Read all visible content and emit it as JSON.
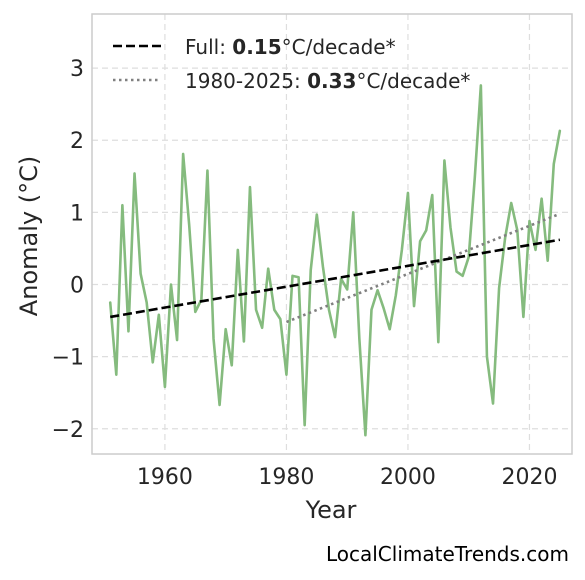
{
  "chart_data": {
    "type": "line",
    "xlabel": "Year",
    "ylabel": "Anomaly (°C)",
    "xlim": [
      1948,
      2027
    ],
    "ylim": [
      -2.35,
      3.75
    ],
    "x_ticks": [
      1960,
      1980,
      2000,
      2020
    ],
    "y_ticks": [
      -2,
      -1,
      0,
      1,
      2,
      3
    ],
    "y_tick_labels": [
      "−2",
      "−1",
      "0",
      "1",
      "2",
      "3"
    ],
    "grid": true,
    "legend_position": "top-left",
    "colors": {
      "series": "#85bb7e",
      "full_trend": "#000000",
      "recent_trend": "#808080",
      "grid": "#dedede",
      "frame": "#cccccc"
    },
    "series": [
      {
        "x": [
          1951,
          1952,
          1953,
          1954,
          1955,
          1956,
          1957,
          1958,
          1959,
          1960,
          1961,
          1962,
          1963,
          1964,
          1965,
          1966,
          1967,
          1968,
          1969,
          1970,
          1971,
          1972,
          1973,
          1974,
          1975,
          1976,
          1977,
          1978,
          1979,
          1980,
          1981,
          1982,
          1983,
          1984,
          1985,
          1986,
          1987,
          1988,
          1989,
          1990,
          1991,
          1992,
          1993,
          1994,
          1995,
          1996,
          1997,
          1998,
          1999,
          2000,
          2001,
          2002,
          2003,
          2004,
          2005,
          2006,
          2007,
          2008,
          2009,
          2010,
          2011,
          2012,
          2013,
          2014,
          2015,
          2016,
          2017,
          2018,
          2019,
          2020,
          2021,
          2022,
          2023,
          2024,
          2025
        ],
        "values": [
          -0.25,
          -1.25,
          1.1,
          -0.65,
          1.54,
          0.15,
          -0.25,
          -1.08,
          -0.42,
          -1.42,
          0.0,
          -0.77,
          1.81,
          0.82,
          -0.38,
          -0.21,
          1.58,
          -0.75,
          -1.67,
          -0.62,
          -1.12,
          0.48,
          -0.79,
          1.35,
          -0.35,
          -0.6,
          0.22,
          -0.35,
          -0.48,
          -1.25,
          0.12,
          0.1,
          -1.95,
          0.2,
          0.97,
          0.25,
          -0.35,
          -0.73,
          0.08,
          -0.07,
          1.0,
          -0.75,
          -2.09,
          -0.35,
          -0.08,
          -0.33,
          -0.62,
          -0.15,
          0.48,
          1.27,
          -0.3,
          0.6,
          0.75,
          1.24,
          -0.8,
          1.72,
          0.79,
          0.18,
          0.12,
          0.38,
          1.48,
          2.76,
          -1.0,
          -1.65,
          -0.05,
          0.65,
          1.13,
          0.75,
          -0.45,
          0.88,
          0.48,
          1.19,
          0.33,
          1.67,
          2.13
        ]
      }
    ],
    "trend_lines": [
      {
        "label_prefix": "Full: ",
        "label_value": "0.15",
        "label_suffix": "°C/decade*",
        "style": "dashed",
        "x": [
          1951,
          2025
        ],
        "y": [
          -0.45,
          0.62
        ]
      },
      {
        "label_prefix": "1980-2025: ",
        "label_value": "0.33",
        "label_suffix": "°C/decade*",
        "style": "dotted",
        "x": [
          1980,
          2025
        ],
        "y": [
          -0.52,
          0.98
        ]
      }
    ]
  },
  "watermark": "LocalClimateTrends.com"
}
